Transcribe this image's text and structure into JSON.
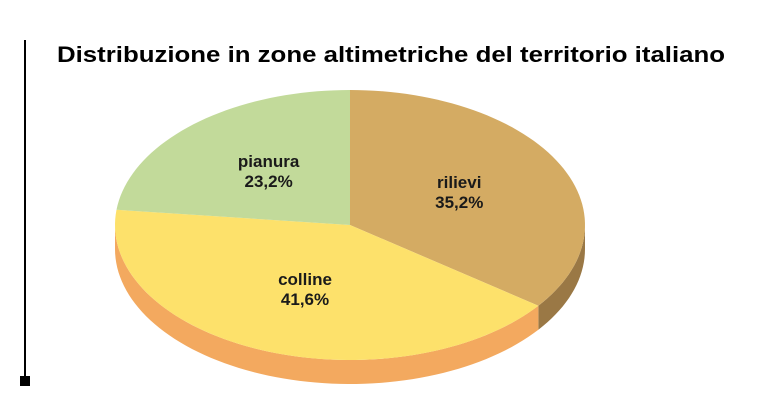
{
  "chart_data": {
    "type": "pie3d",
    "title": "Distribuzione in zone altimetriche del territorio italiano",
    "categories": [
      "rilievi",
      "colline",
      "pianura"
    ],
    "values": [
      35.2,
      41.6,
      23.2
    ],
    "value_labels": [
      "35,2%",
      "41,6%",
      "23,2%"
    ],
    "colors": [
      "#d4ab63",
      "#fde16b",
      "#c2da9a"
    ],
    "side_colors": [
      "#9a7845",
      "#f3a95f",
      "#a9c083"
    ]
  }
}
